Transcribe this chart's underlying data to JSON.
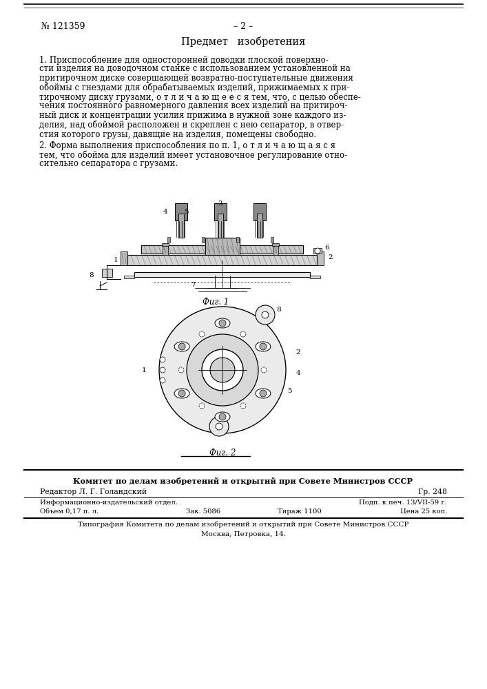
{
  "bg_color": "#ffffff",
  "patent_number": "№ 121359",
  "page_number": "– 2 –",
  "section_title": "Предмет   изобретения",
  "para1_lines": [
    "1. Приспособление для односторонней доводки плоской поверхно-",
    "сти изделия на доводочном станке с использованием установленной на",
    "притирочном диске совершающей возвратно-поступательные движения",
    "обоймы с гнездами для обрабатываемых изделий, прижимаемых к при-",
    "тирочному диску грузами, о т л и ч а ю щ е е с я тем, что, с целью обеспе-",
    "чения постоянного равномерного давления всех изделий на притироч-",
    "ный диск и концентрации усилия прижима в нужной зоне каждого из-",
    "делия, над обоймой расположен и скреплен с нею сепаратор, в отвер-",
    "стия которого грузы, давящие на изделия, помещены свободно."
  ],
  "para2_lines": [
    "2. Форма выполнения приспособления по п. 1, о т л и ч а ю щ а я с я",
    "тем, что обойма для изделий имеет установочное регулирование отно-",
    "сительно сепаратора с грузами."
  ],
  "footer_bold_line": "Комитет по делам изобретений и открытий при Совете Министров СССР",
  "editor_line": "Редактор Л. Г. Голандский",
  "gr_line": "Гр. 248",
  "info_line1_left": "Информационно-издательский отдел.",
  "info_line1_right": "Подп. к печ. 13/VII-59 г.",
  "info_line2_left": "Объем 0,17 п. л.",
  "info_line2_mid1": "Зак. 5086",
  "info_line2_mid2": "Тираж 1100",
  "info_line2_right": "Цена 25 коп.",
  "typography_line1": "Типография Комитета по делам изобретений и открытий при Совете Министров СССР",
  "typography_line2": "Москва, Петровка, 14."
}
